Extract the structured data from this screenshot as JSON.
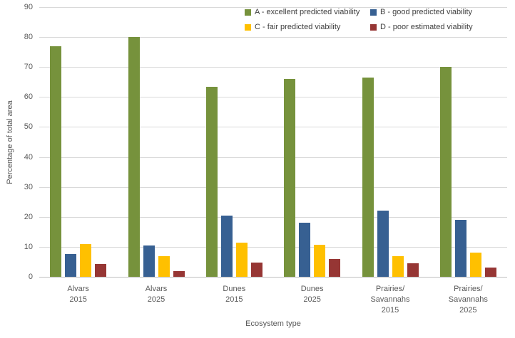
{
  "chart_data": {
    "type": "bar",
    "title": "",
    "xlabel": "Ecosystem type",
    "ylabel": "Percentage of total area",
    "ylim": [
      0,
      90
    ],
    "ytick_step": 10,
    "grid": true,
    "legend_position": "top-right",
    "legend_columns": 2,
    "categories": [
      [
        "Alvars",
        "2015"
      ],
      [
        "Alvars",
        "2025"
      ],
      [
        "Dunes",
        "2015"
      ],
      [
        "Dunes",
        "2025"
      ],
      [
        "Prairies/",
        "Savannahs",
        "2015"
      ],
      [
        "Prairies/",
        "Savannahs",
        "2025"
      ]
    ],
    "series": [
      {
        "name": "A - excellent predicted viability",
        "color": "#76923C",
        "values": [
          77,
          80,
          63.3,
          66,
          66.5,
          70
        ]
      },
      {
        "name": "B - good predicted viability",
        "color": "#376092",
        "values": [
          7.5,
          10.4,
          20.5,
          18,
          22,
          19
        ]
      },
      {
        "name": "C - fair predicted viability",
        "color": "#FFC000",
        "values": [
          11,
          7,
          11.5,
          10.8,
          6.8,
          8
        ]
      },
      {
        "name": "D - poor estimated viability",
        "color": "#963634",
        "values": [
          4.3,
          2,
          4.7,
          6,
          4.5,
          3
        ]
      }
    ]
  },
  "colors": {
    "background": "#FFFFFF",
    "gridline": "#D9D9D9",
    "axis_line": "#BFBFBF",
    "axis_text": "#595959",
    "legend_text": "#404040"
  }
}
